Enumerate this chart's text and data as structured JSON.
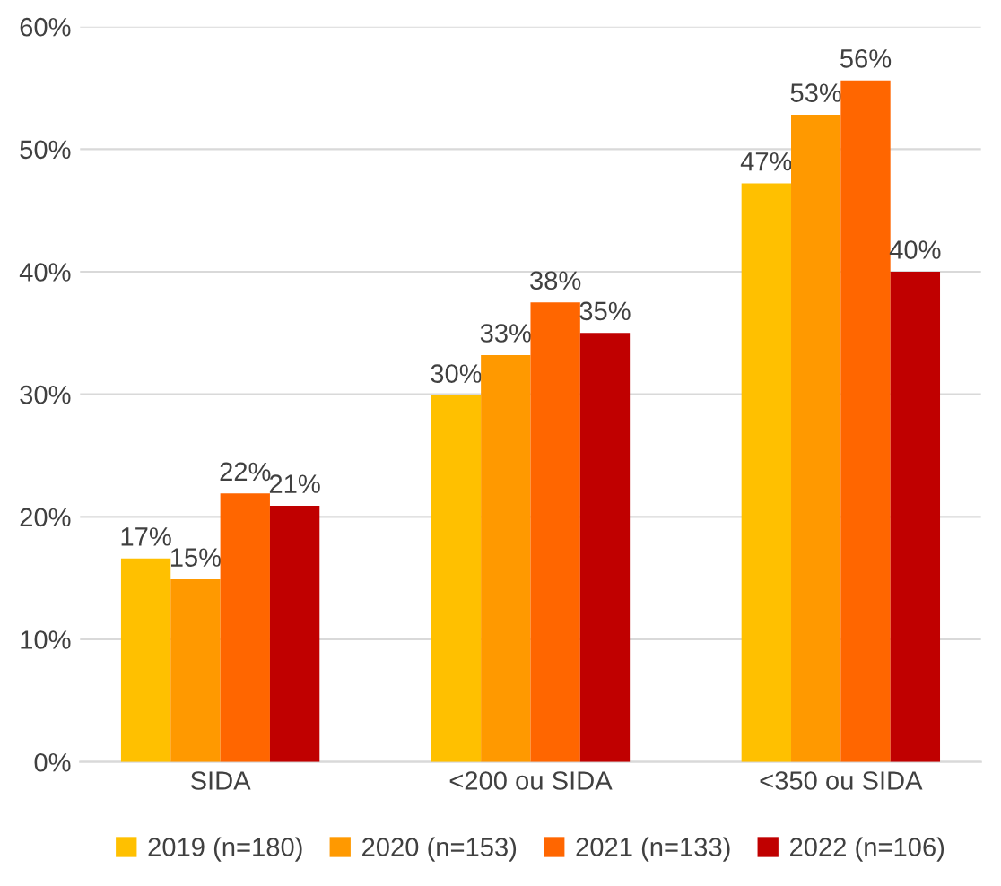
{
  "chart_data": {
    "type": "bar",
    "categories": [
      "SIDA",
      "<200 ou SIDA",
      "<350 ou SIDA"
    ],
    "series": [
      {
        "name": "2019 (n=180)",
        "color": "#ffc000",
        "values": [
          16.6,
          29.9,
          47.2
        ],
        "value_labels": [
          "17%",
          "30%",
          "47%"
        ]
      },
      {
        "name": "2020 (n=153)",
        "color": "#ff9900",
        "values": [
          14.9,
          33.2,
          52.8
        ],
        "value_labels": [
          "15%",
          "33%",
          "53%"
        ]
      },
      {
        "name": "2021 (n=133)",
        "color": "#ff6600",
        "values": [
          21.9,
          37.5,
          55.6
        ],
        "value_labels": [
          "22%",
          "38%",
          "56%"
        ]
      },
      {
        "name": "2022 (n=106)",
        "color": "#c00000",
        "values": [
          20.9,
          35.0,
          40.0
        ],
        "value_labels": [
          "21%",
          "35%",
          "40%"
        ]
      }
    ],
    "ylim": [
      0,
      60
    ],
    "yticks": [
      {
        "value": 0,
        "label": "0%"
      },
      {
        "value": 10,
        "label": "10%"
      },
      {
        "value": 20,
        "label": "20%"
      },
      {
        "value": 30,
        "label": "30%"
      },
      {
        "value": 40,
        "label": "40%"
      },
      {
        "value": 50,
        "label": "50%"
      },
      {
        "value": 60,
        "label": "60%"
      }
    ],
    "grid": "y",
    "legend": "bottom"
  }
}
